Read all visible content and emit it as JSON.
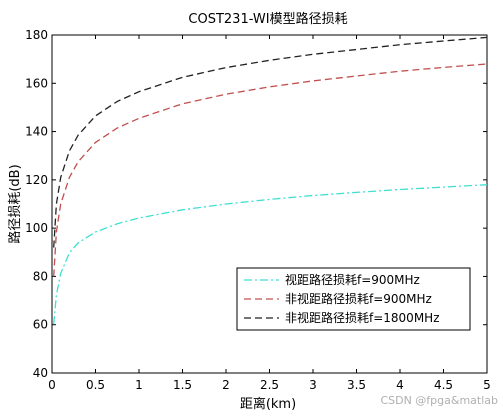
{
  "chart_data": {
    "type": "line",
    "title": "COST231-WI模型路径损耗",
    "xlabel": "距离(km)",
    "ylabel": "路径损耗(dB)",
    "xlim": [
      0,
      5
    ],
    "ylim": [
      40,
      180
    ],
    "xticks": [
      0,
      0.5,
      1,
      1.5,
      2,
      2.5,
      3,
      3.5,
      4,
      4.5,
      5
    ],
    "xtick_labels": [
      "0",
      "0.5",
      "1",
      "1.5",
      "2",
      "2.5",
      "3",
      "3.5",
      "4",
      "4.5",
      "5"
    ],
    "yticks": [
      40,
      60,
      80,
      100,
      120,
      140,
      160,
      180
    ],
    "ytick_labels": [
      "40",
      "60",
      "80",
      "100",
      "120",
      "140",
      "160",
      "180"
    ],
    "grid": false,
    "legend_position": "lower-right",
    "series": [
      {
        "name": "视距路径损耗f=900MHz",
        "color": "#40e0d0",
        "dash": "dash-dot",
        "x": [
          0.02,
          0.05,
          0.1,
          0.2,
          0.3,
          0.5,
          0.75,
          1,
          1.5,
          2,
          2.5,
          3,
          3.5,
          4,
          4.5,
          5
        ],
        "y": [
          60.2,
          72.3,
          81.2,
          89.8,
          93.9,
          98.4,
          101.8,
          104.2,
          107.6,
          110.0,
          111.9,
          113.5,
          114.8,
          116.0,
          117.0,
          118.0
        ]
      },
      {
        "name": "非视距路径损耗f=900MHz",
        "color": "#c0504d",
        "dash": "dash",
        "x": [
          0.02,
          0.05,
          0.1,
          0.2,
          0.3,
          0.5,
          0.75,
          1,
          1.5,
          2,
          2.5,
          3,
          3.5,
          4,
          4.5,
          5
        ],
        "y": [
          80.0,
          98.5,
          110.0,
          121.0,
          127.5,
          135.5,
          141.5,
          145.5,
          151.5,
          155.5,
          158.5,
          161.0,
          163.0,
          165.0,
          166.6,
          168.0
        ]
      },
      {
        "name": "非视距路径损耗f=1800MHz",
        "color": "#222222",
        "dash": "dash",
        "x": [
          0.02,
          0.05,
          0.1,
          0.2,
          0.3,
          0.5,
          0.75,
          1,
          1.5,
          2,
          2.5,
          3,
          3.5,
          4,
          4.5,
          5
        ],
        "y": [
          92.0,
          110.0,
          121.0,
          132.0,
          138.5,
          146.5,
          152.5,
          156.5,
          162.5,
          166.5,
          169.5,
          172.0,
          174.0,
          176.0,
          177.5,
          179.0
        ]
      }
    ],
    "watermark": "CSDN @fpga&matlab"
  }
}
